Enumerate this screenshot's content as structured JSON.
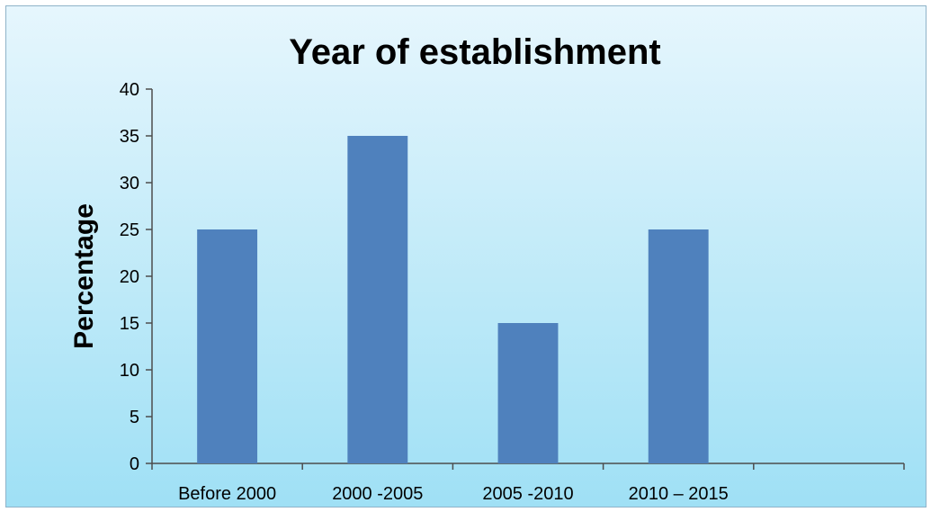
{
  "chart_data": {
    "type": "bar",
    "title": "Year of establishment",
    "xlabel": "",
    "ylabel": "Percentage",
    "categories": [
      "Before 2000",
      "2000 -2005",
      "2005 -2010",
      "2010 – 2015",
      ""
    ],
    "values": [
      25,
      35,
      15,
      25,
      null
    ],
    "ylim": [
      0,
      40
    ],
    "yticks": [
      "0",
      "5",
      "10",
      "15",
      "20",
      "25",
      "30",
      "35",
      "40"
    ],
    "grid": false,
    "legend": "none",
    "colors": {
      "bar": "#4f81bd",
      "axis": "#4d4d4d",
      "background_top": "#e6f6fd",
      "background_bottom": "#9fe0f5"
    }
  }
}
